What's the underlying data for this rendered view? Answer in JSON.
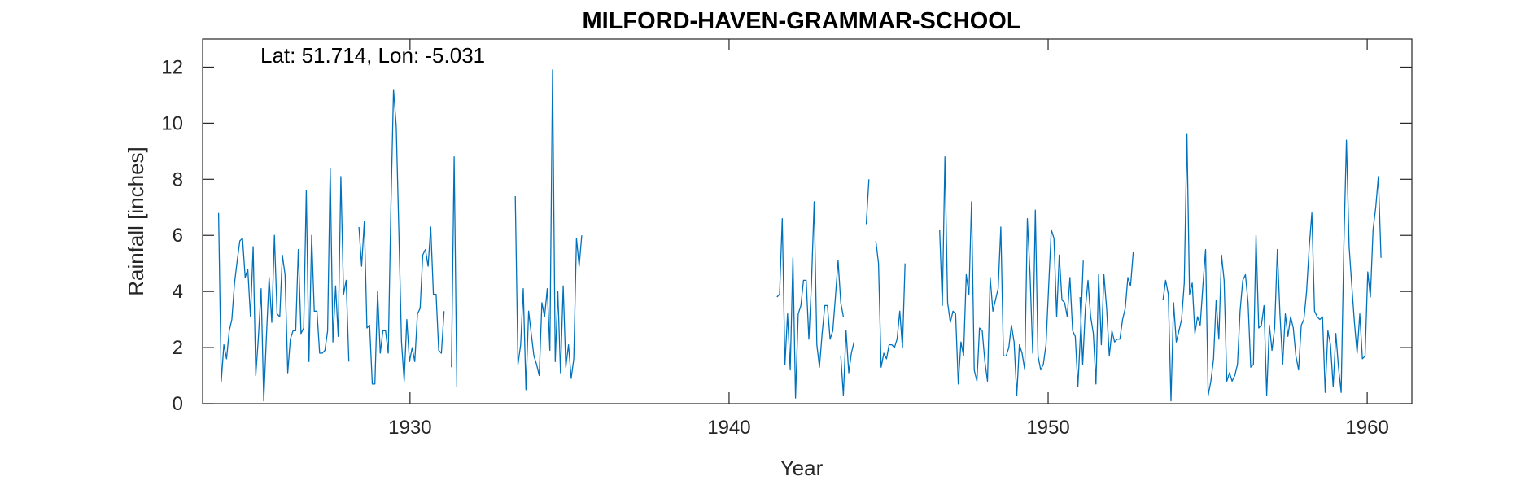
{
  "chart_data": {
    "type": "line",
    "title": "MILFORD-HAVEN-GRAMMAR-SCHOOL",
    "annotation": "Lat: 51.714, Lon: -5.031",
    "xlabel": "Year",
    "ylabel": "Rainfall [inches]",
    "xlim": [
      1923.5,
      1961.4
    ],
    "ylim": [
      0,
      13
    ],
    "xticks": [
      1930,
      1940,
      1950,
      1960
    ],
    "yticks": [
      0,
      2,
      4,
      6,
      8,
      10,
      12
    ],
    "grid": false,
    "line_color": "#0072BD",
    "series": [
      {
        "values_note": "monthly rainfall; null = missing",
        "segments": [
          {
            "start": 1924.0,
            "step": 0.0833333,
            "values": [
              6.8,
              0.8,
              2.1,
              1.6,
              2.6,
              3.0,
              4.3,
              5.1,
              5.8,
              5.9,
              4.5,
              4.8,
              3.1,
              5.6,
              1.0,
              2.4,
              4.1,
              0.1,
              2.4,
              4.5,
              2.9,
              6.0,
              3.2,
              3.1,
              5.3,
              4.6,
              1.1,
              2.3,
              2.6,
              2.6,
              5.5,
              2.5,
              2.7,
              7.6,
              1.5,
              6.0,
              3.3,
              3.3,
              1.8,
              1.8,
              1.9,
              2.6,
              8.4,
              2.2,
              4.2,
              2.4,
              8.1,
              3.9,
              4.4,
              1.5
            ]
          },
          {
            "start": 1928.4,
            "step": 0.0833333,
            "values": [
              6.3,
              4.9,
              6.5,
              2.7,
              2.8,
              0.7,
              0.7,
              4.0,
              1.8,
              2.6,
              2.6,
              1.8,
              6.9,
              11.2,
              9.9,
              6.2,
              2.2,
              0.8,
              3.0,
              1.5,
              2.0,
              1.5,
              3.2,
              3.4,
              5.3,
              5.5,
              4.9,
              6.3,
              3.9,
              3.9,
              1.9,
              1.8,
              3.3
            ]
          },
          {
            "start": 1931.3,
            "step": 0.0833333,
            "values": [
              1.3,
              8.8,
              0.6
            ]
          },
          {
            "start": 1933.3,
            "step": 0.0833333,
            "values": [
              7.4,
              1.4,
              2.1,
              4.1,
              0.5,
              3.3,
              2.5,
              1.7,
              1.4,
              1.0,
              3.6,
              3.1,
              4.1,
              1.9,
              11.9,
              1.5,
              4.0,
              1.1,
              4.2,
              1.3,
              2.1,
              0.9,
              1.6,
              5.9,
              4.9,
              6.0
            ]
          },
          {
            "start": 1941.5,
            "step": 0.0833333,
            "values": [
              3.8,
              3.9,
              6.6,
              1.4,
              3.2,
              1.2,
              5.2,
              0.2,
              3.2,
              3.5,
              4.4,
              4.4,
              2.3,
              4.3,
              7.2,
              2.1,
              1.3,
              2.5,
              3.5,
              3.5,
              2.3,
              2.6,
              3.8,
              5.1,
              3.6,
              3.1
            ]
          },
          {
            "start": 1943.5,
            "step": 0.0833333,
            "values": [
              1.7,
              0.3,
              2.6,
              1.1,
              1.8,
              2.2
            ]
          },
          {
            "start": 1944.3,
            "step": 0.0833333,
            "values": [
              6.4,
              8.0
            ]
          },
          {
            "start": 1944.6,
            "step": 0.0833333,
            "values": [
              5.8,
              5.0,
              1.3,
              1.8,
              1.6,
              2.1,
              2.1,
              2.0,
              2.3,
              3.3,
              2.0,
              5.0
            ]
          },
          {
            "start": 1946.6,
            "step": 0.0833333,
            "values": [
              6.2,
              3.5,
              8.8,
              3.6,
              2.9,
              3.3,
              3.2,
              0.7,
              2.2,
              1.7,
              4.6,
              3.9,
              7.2,
              1.2,
              0.8,
              2.7,
              2.6,
              1.5,
              0.8,
              4.5,
              3.3,
              3.7,
              4.1,
              6.3,
              1.7,
              1.7,
              2.0,
              2.8,
              2.2,
              0.3,
              2.1,
              1.8,
              1.2,
              6.6,
              4.6,
              1.8,
              6.9,
              1.7,
              1.2,
              1.4,
              2.1,
              4.2,
              6.2,
              5.9,
              3.1,
              5.3,
              3.7,
              3.6,
              3.1,
              4.5,
              2.6,
              2.4,
              0.6,
              2.6,
              5.1
            ]
          },
          {
            "start": 1951.0,
            "step": 0.0833333,
            "values": [
              3.8,
              1.4,
              3.4,
              4.4,
              3.1,
              2.5,
              0.7,
              4.6,
              2.1,
              4.6,
              3.4,
              1.7,
              2.6,
              2.2,
              2.3,
              2.3,
              3.0,
              3.4,
              4.5,
              4.2,
              5.4
            ]
          },
          {
            "start": 1953.6,
            "step": 0.0833333,
            "values": [
              3.7,
              4.4,
              3.9,
              0.1,
              3.6,
              2.2,
              2.6,
              3.0,
              4.3,
              9.6,
              3.9,
              4.3,
              2.5,
              3.1,
              2.8,
              4.2,
              5.5,
              0.3,
              0.8,
              1.6,
              3.7,
              2.3,
              5.3,
              4.4,
              0.8,
              1.1,
              0.8,
              1.0,
              1.4,
              3.3,
              4.4,
              4.6,
              3.6,
              1.3,
              1.4,
              6.0,
              2.7,
              2.8,
              3.5,
              0.3,
              2.8,
              1.9,
              2.7,
              5.5,
              3.2,
              1.4,
              3.2,
              2.4,
              3.1,
              2.7,
              1.7,
              1.2,
              2.8,
              3.0,
              4.0,
              5.6,
              6.8,
              3.3,
              3.1,
              3.0,
              3.1,
              0.4,
              2.6,
              2.1,
              0.6,
              2.5,
              1.3,
              0.4,
              5.6,
              9.4,
              5.6,
              4.2,
              2.9,
              1.8,
              3.2,
              1.6,
              1.7,
              4.7,
              3.8,
              6.2,
              7.0,
              8.1,
              5.2
            ]
          }
        ]
      }
    ]
  }
}
